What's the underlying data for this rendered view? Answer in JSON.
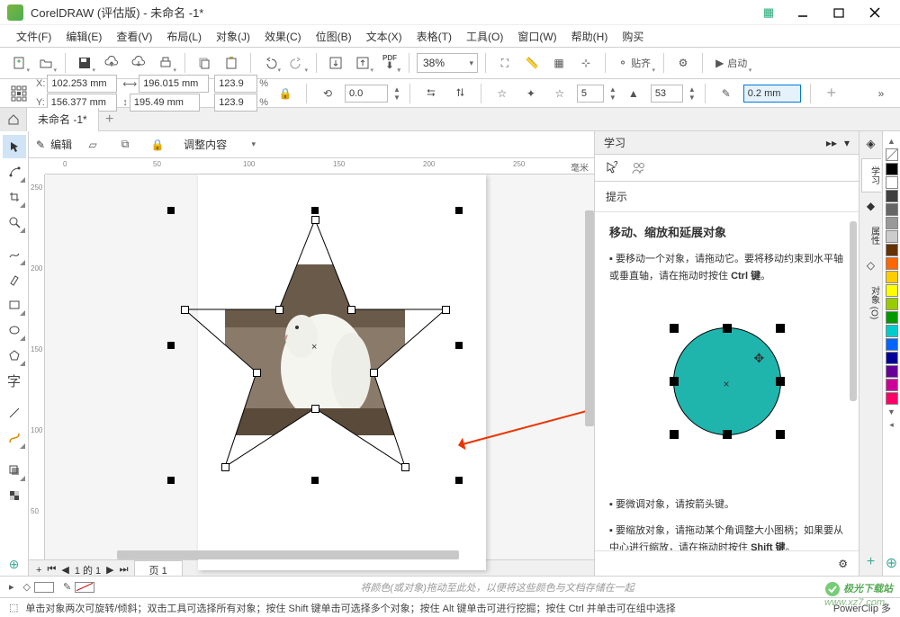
{
  "title": "CorelDRAW (评估版) - 未命名 -1*",
  "menus": [
    "文件(F)",
    "编辑(E)",
    "查看(V)",
    "布局(L)",
    "对象(J)",
    "效果(C)",
    "位图(B)",
    "文本(X)",
    "表格(T)",
    "工具(O)",
    "窗口(W)",
    "帮助(H)",
    "购买"
  ],
  "toolbar": {
    "zoom": "38%",
    "snap": "贴齐",
    "launch": "启动"
  },
  "props": {
    "x": "102.253 mm",
    "y": "156.377 mm",
    "w": "196.015 mm",
    "h": "195.49 mm",
    "sx": "123.9",
    "sy": "123.9",
    "pct": "%",
    "rot": "0.0",
    "points": "5",
    "sharp": "53",
    "outline": "0.2 mm"
  },
  "doctab": "未命名 -1*",
  "contextbar": {
    "edit": "编辑",
    "adjust": "调整内容"
  },
  "ruler": {
    "marks": [
      "0",
      "50",
      "100",
      "150",
      "200",
      "250"
    ],
    "unit": "毫米",
    "vmarks": [
      "250",
      "200",
      "150",
      "100",
      "50"
    ]
  },
  "pagenav": {
    "info": "1 的 1",
    "page": "页 1"
  },
  "learn": {
    "title": "学习",
    "hint": "提示",
    "heading": "移动、缩放和延展对象",
    "p1a": "要移动一个对象，请拖动它。要将移动约束到水平轴或垂直轴，请在拖动时按住 ",
    "p1b": "Ctrl 键",
    "p2": "要微调对象，请按箭头键。",
    "p3a": "要缩放对象，请拖动某个角调整大小图柄；如果要从中心进行缩放，请在拖动时按住 ",
    "p3b": "Shift 键"
  },
  "sidetabs": [
    "学习",
    "属性",
    "对象 (O)"
  ],
  "palette": [
    "#000000",
    "#ffffff",
    "#404040",
    "#666666",
    "#999999",
    "#cccccc",
    "#663300",
    "#ff6600",
    "#ffcc00",
    "#ffff00",
    "#99cc00",
    "#009900",
    "#00cccc",
    "#0066ff",
    "#000099",
    "#660099",
    "#cc0099",
    "#ff0066"
  ],
  "status": {
    "hint": "将颜色(或对象)拖动至此处，以便将这些颜色与文档存储在一起"
  },
  "bottomhint": "单击对象两次可旋转/倾斜；双击工具可选择所有对象；按住 Shift 键单击可选择多个对象；按住 Alt 键单击可进行挖掘；按住 Ctrl 并单击可在组中选择",
  "powerclip": "PowerClip 多",
  "watermark": "极光下载站",
  "watermark2": "www.xz7.com",
  "circle_color": "#1fb5ad",
  "star_nodes": [
    [
      160,
      10
    ],
    [
      200,
      110
    ],
    [
      305,
      110
    ],
    [
      225,
      180
    ],
    [
      260,
      285
    ],
    [
      160,
      220
    ],
    [
      60,
      285
    ],
    [
      95,
      180
    ],
    [
      15,
      110
    ],
    [
      120,
      110
    ]
  ]
}
